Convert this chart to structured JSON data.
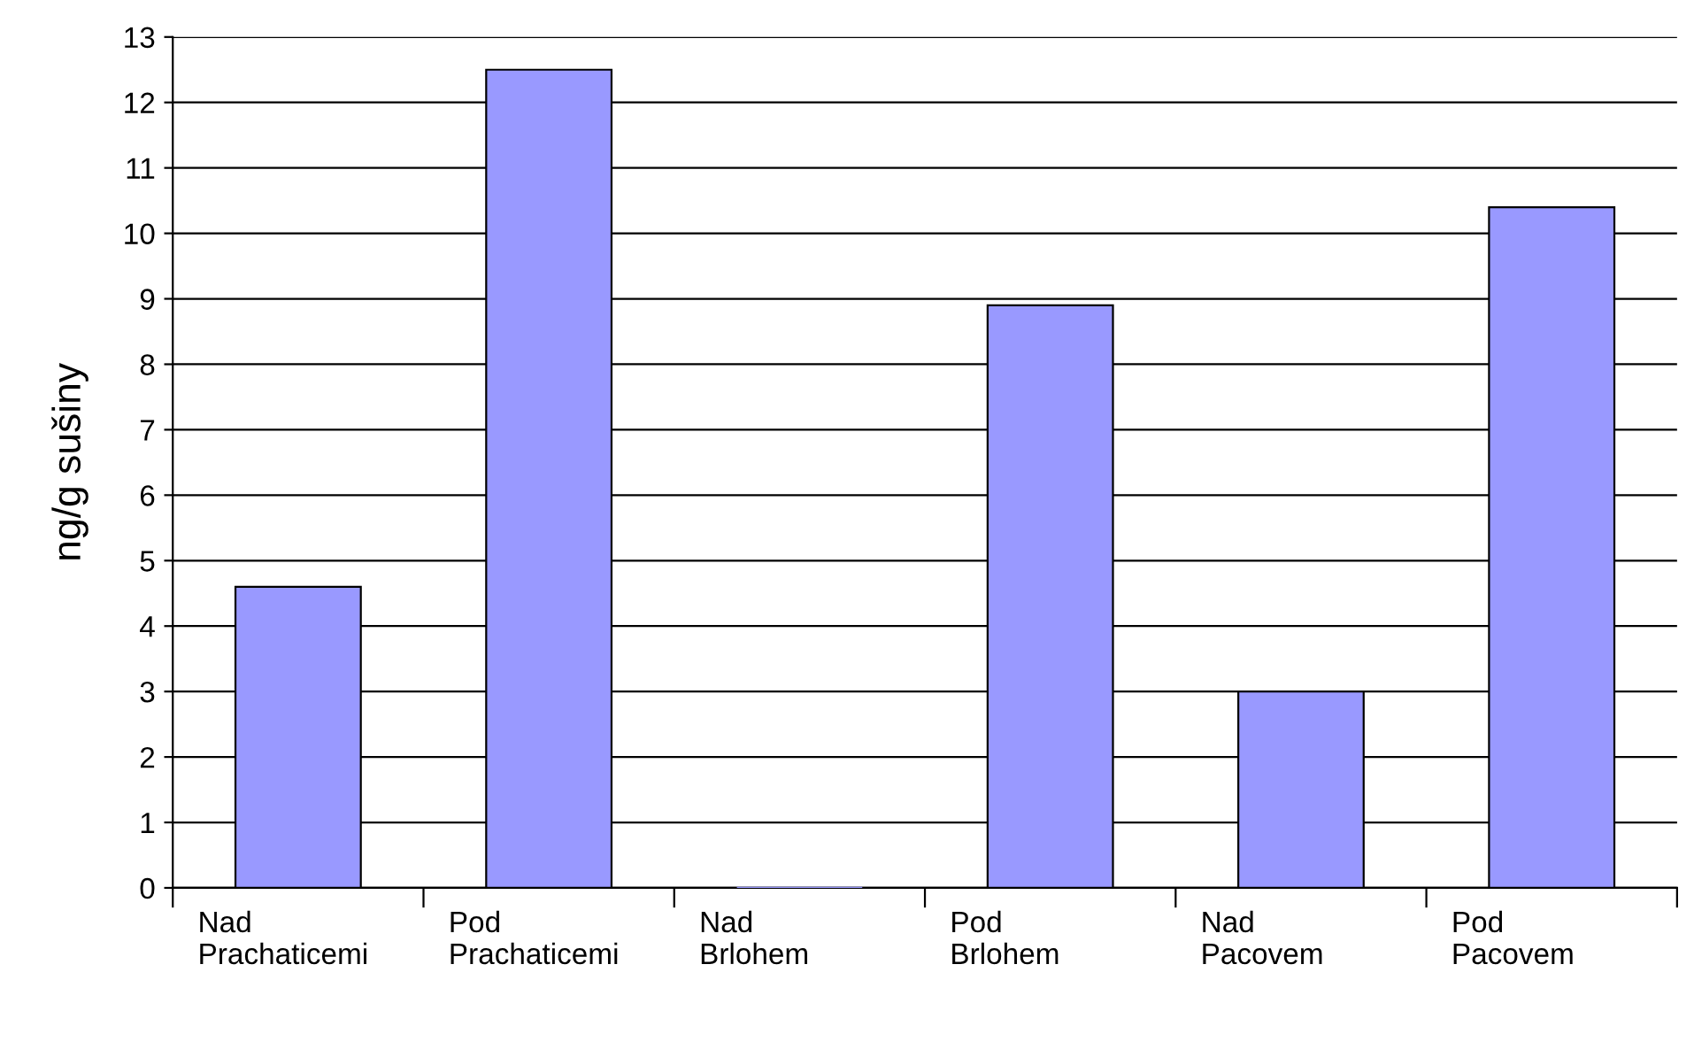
{
  "chart_data": {
    "type": "bar",
    "ylabel": "ng/g sušiny",
    "categories": [
      "Nad Prachaticemi",
      "Pod Prachaticemi",
      "Nad Brlohem",
      "Pod Brlohem",
      "Nad Pacovem",
      "Pod Pacovem"
    ],
    "values": [
      4.6,
      12.5,
      0,
      8.9,
      3.0,
      10.4
    ],
    "color": "#9999ff",
    "ylim": [
      0,
      13
    ],
    "yticks": [
      0,
      1,
      2,
      3,
      4,
      5,
      6,
      7,
      8,
      9,
      10,
      11,
      12,
      13
    ],
    "grid": "y",
    "legend": false
  }
}
